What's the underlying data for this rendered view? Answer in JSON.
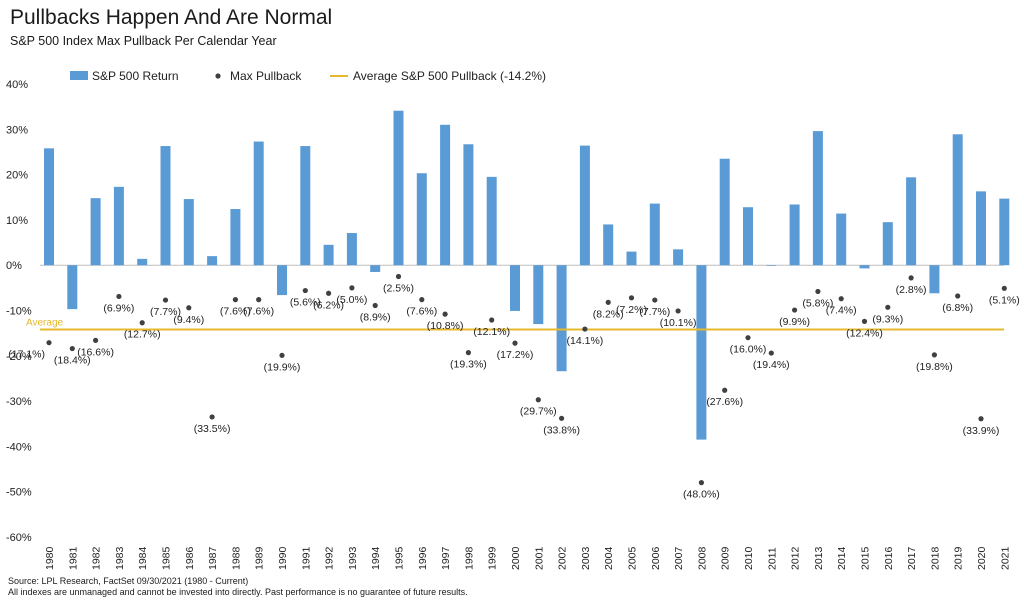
{
  "title": "Pullbacks Happen And Are Normal",
  "subtitle": "S&P 500 Index Max Pullback Per Calendar Year",
  "footer": {
    "line1": "Source: LPL Research, FactSet 09/30/2021 (1980 - Current)",
    "line2": "All indexes are unmanaged  and cannot be invested into directly. Past performance is no guarantee of future results."
  },
  "colors": {
    "bar": "#5b9bd5",
    "dot": "#404040",
    "average": "#e6b82e"
  },
  "chart_data": {
    "type": "bar",
    "title": "Pullbacks Happen And Are Normal",
    "subtitle": "S&P 500 Index Max Pullback Per Calendar Year",
    "ylim": [
      -60,
      40
    ],
    "yticks": [
      40,
      30,
      20,
      10,
      0,
      -10,
      -20,
      -30,
      -40,
      -50,
      -60
    ],
    "ytick_labels": [
      "40%",
      "30%",
      "20%",
      "10%",
      "0%",
      "-10%",
      "-20%",
      "-30%",
      "-40%",
      "-50%",
      "-60%"
    ],
    "grid": false,
    "legend_position": "top",
    "categories": [
      "1980",
      "1981",
      "1982",
      "1983",
      "1984",
      "1985",
      "1986",
      "1987",
      "1988",
      "1989",
      "1990",
      "1991",
      "1992",
      "1993",
      "1994",
      "1995",
      "1996",
      "1997",
      "1998",
      "1999",
      "2000",
      "2001",
      "2002",
      "2003",
      "2004",
      "2005",
      "2006",
      "2007",
      "2008",
      "2009",
      "2010",
      "2011",
      "2012",
      "2013",
      "2014",
      "2015",
      "2016",
      "2017",
      "2018",
      "2019",
      "2020",
      "2021"
    ],
    "series": [
      {
        "name": "S&P 500 Return",
        "type": "bar",
        "values": [
          25.8,
          -9.7,
          14.8,
          17.3,
          1.4,
          26.3,
          14.6,
          2.0,
          12.4,
          27.3,
          -6.6,
          26.3,
          4.5,
          7.1,
          -1.5,
          34.1,
          20.3,
          31.0,
          26.7,
          19.5,
          -10.1,
          -13.0,
          -23.4,
          26.4,
          9.0,
          3.0,
          13.6,
          3.5,
          -38.5,
          23.5,
          12.8,
          0.0,
          13.4,
          29.6,
          11.4,
          -0.7,
          9.5,
          19.4,
          -6.2,
          28.9,
          16.3,
          14.7
        ]
      },
      {
        "name": "Max Pullback",
        "type": "scatter",
        "values": [
          -17.1,
          -18.4,
          -16.6,
          -6.9,
          -12.7,
          -7.7,
          -9.4,
          -33.5,
          -7.6,
          -7.6,
          -19.9,
          -5.6,
          -6.2,
          -5.0,
          -8.9,
          -2.5,
          -7.6,
          -10.8,
          -19.3,
          -12.1,
          -17.2,
          -29.7,
          -33.8,
          -14.1,
          -8.2,
          -7.2,
          -7.7,
          -10.1,
          -48.0,
          -27.6,
          -16.0,
          -19.4,
          -9.9,
          -5.8,
          -7.4,
          -12.4,
          -9.3,
          -2.8,
          -19.8,
          -6.8,
          -33.9,
          -5.1
        ],
        "labels": [
          "(17.1%)",
          "(18.4%)",
          "(16.6%)",
          "(6.9%)",
          "(12.7%)",
          "(7.7%)",
          "(9.4%)",
          "(33.5%)",
          "(7.6%)",
          "(7.6%)",
          "(19.9%)",
          "(5.6%)",
          "(6.2%)",
          "(5.0%)",
          "(8.9%)",
          "(2.5%)",
          "(7.6%)",
          "(10.8%)",
          "(19.3%)",
          "(12.1%)",
          "(17.2%)",
          "(29.7%)",
          "(33.8%)",
          "(14.1%)",
          "(8.2%)",
          "(7.2%)",
          "(7.7%)",
          "(10.1%)",
          "(48.0%)",
          "(27.6%)",
          "(16.0%)",
          "(19.4%)",
          "(9.9%)",
          "(5.8%)",
          "(7.4%)",
          "(12.4%)",
          "(9.3%)",
          "(2.8%)",
          "(19.8%)",
          "(6.8%)",
          "(33.9%)",
          "(5.1%)"
        ],
        "label_positions": [
          "bl",
          "b",
          "b",
          "b",
          "b",
          "b",
          "b",
          "b",
          "b",
          "b",
          "b",
          "b",
          "b",
          "b",
          "b",
          "b",
          "b",
          "b",
          "b",
          "b",
          "b",
          "b",
          "b",
          "b",
          "b",
          "b",
          "b",
          "b",
          "b",
          "b",
          "b",
          "b",
          "b",
          "b",
          "b",
          "b",
          "b",
          "b",
          "b",
          "b",
          "b",
          "b"
        ]
      },
      {
        "name": "Average S&P 500 Pullback (-14.2%)",
        "type": "line",
        "value": -14.2
      }
    ],
    "average_label": "Average"
  }
}
